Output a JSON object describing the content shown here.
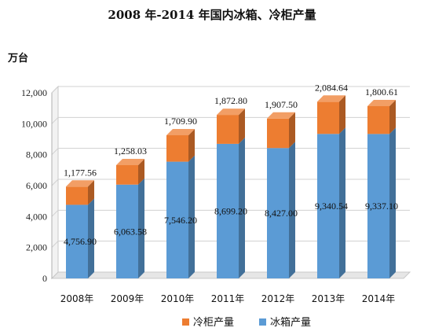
{
  "chart_data": {
    "type": "bar",
    "stacked": true,
    "three_d": true,
    "title": "2008 年-2014 年国内冰箱、冷柜产量",
    "ylabel": "万台",
    "xlabel": "",
    "categories": [
      "2008年",
      "2009年",
      "2010年",
      "2011年",
      "2012年",
      "2013年",
      "2014年"
    ],
    "series": [
      {
        "name": "冰箱产量",
        "color": "#5b9bd5",
        "values": [
          4756.9,
          6063.58,
          7546.2,
          8699.2,
          8427.0,
          9340.54,
          9337.1
        ],
        "labels": [
          "4,756.90",
          "6,063.58",
          "7,546.20",
          "8,699.20",
          "8,427.00",
          "9,340.54",
          "9,337.10"
        ]
      },
      {
        "name": "冷柜产量",
        "color": "#ed7d31",
        "values": [
          1177.56,
          1258.03,
          1709.9,
          1872.8,
          1907.5,
          2084.64,
          1800.61
        ],
        "labels": [
          "1,177.56",
          "1,258.03",
          "1,709.90",
          "1,872.80",
          "1,907.50",
          "2,084.64",
          "1,800.61"
        ]
      }
    ],
    "ylim": [
      0,
      12000
    ],
    "yticks": [
      0,
      2000,
      4000,
      6000,
      8000,
      10000,
      12000
    ],
    "ytick_labels": [
      "0",
      "2,000",
      "4,000",
      "6,000",
      "8,000",
      "10,000",
      "12,000"
    ],
    "legend_position": "bottom",
    "legend": [
      "冷柜产量",
      "冰箱产量"
    ],
    "grid": true
  }
}
